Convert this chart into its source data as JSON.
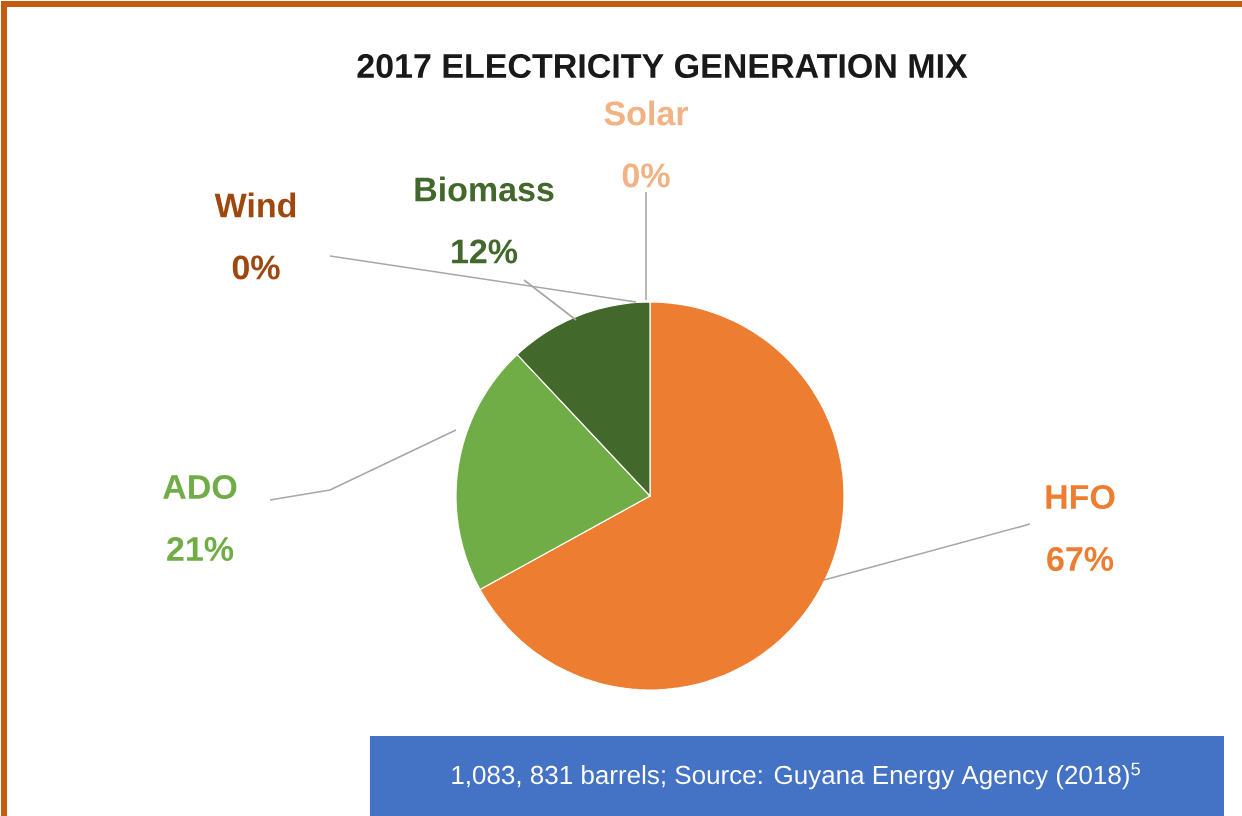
{
  "chart_data": {
    "type": "pie",
    "title": "2017 ELECTRICITY GENERATION MIX",
    "categories": [
      "HFO",
      "ADO",
      "Biomass",
      "Wind",
      "Solar"
    ],
    "values": [
      67,
      21,
      12,
      0,
      0
    ],
    "value_labels": [
      "67%",
      "21%",
      "12%",
      "0%",
      "0%"
    ],
    "colors": [
      "#ed7d31",
      "#70ad47",
      "#43682b",
      "#9e480e",
      "#f4b183"
    ],
    "annotations": [
      "1,083, 831 barrels; Source: Guyana Energy Agency (2018)$^{5}$"
    ]
  }
}
